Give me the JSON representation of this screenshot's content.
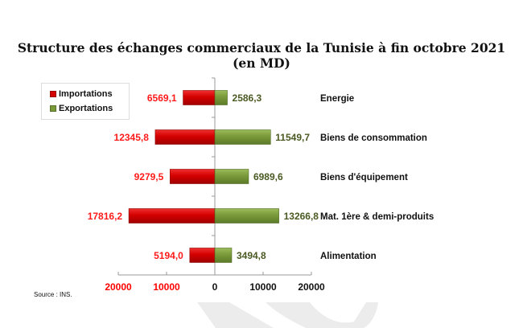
{
  "chart_data": {
    "type": "bar",
    "orientation": "horizontal-diverging",
    "title": "Structure des échanges commerciaux de la Tunisie à fin octobre 2021",
    "subtitle": "(en MD)",
    "categories": [
      "Energie",
      "Biens de consommation",
      "Biens d'équipement",
      "Mat. 1ère & demi-produits",
      "Alimentation"
    ],
    "series": [
      {
        "name": "Importations",
        "color": "#d40000",
        "values": [
          6569.1,
          12345.8,
          9279.5,
          17816.2,
          5194.0
        ],
        "labels": [
          "6569,1",
          "12345,8",
          "9279,5",
          "17816,2",
          "5194,0"
        ],
        "label_color": "#ff1a1a"
      },
      {
        "name": "Exportations",
        "color": "#7a9a3a",
        "values": [
          2586.3,
          11549.7,
          6989.6,
          13266.8,
          3494.8
        ],
        "labels": [
          "2586,3",
          "11549,7",
          "6989,6",
          "13266,8",
          "3494,8"
        ],
        "label_color": "#4a5a22"
      }
    ],
    "xlim": [
      -20000,
      20000
    ],
    "xticks": [
      -20000,
      -10000,
      0,
      10000,
      20000
    ],
    "xtick_labels": [
      "20000",
      "10000",
      "0",
      "10000",
      "20000"
    ],
    "legend_position": "top-left",
    "grid": false
  },
  "source": "Source : INS."
}
